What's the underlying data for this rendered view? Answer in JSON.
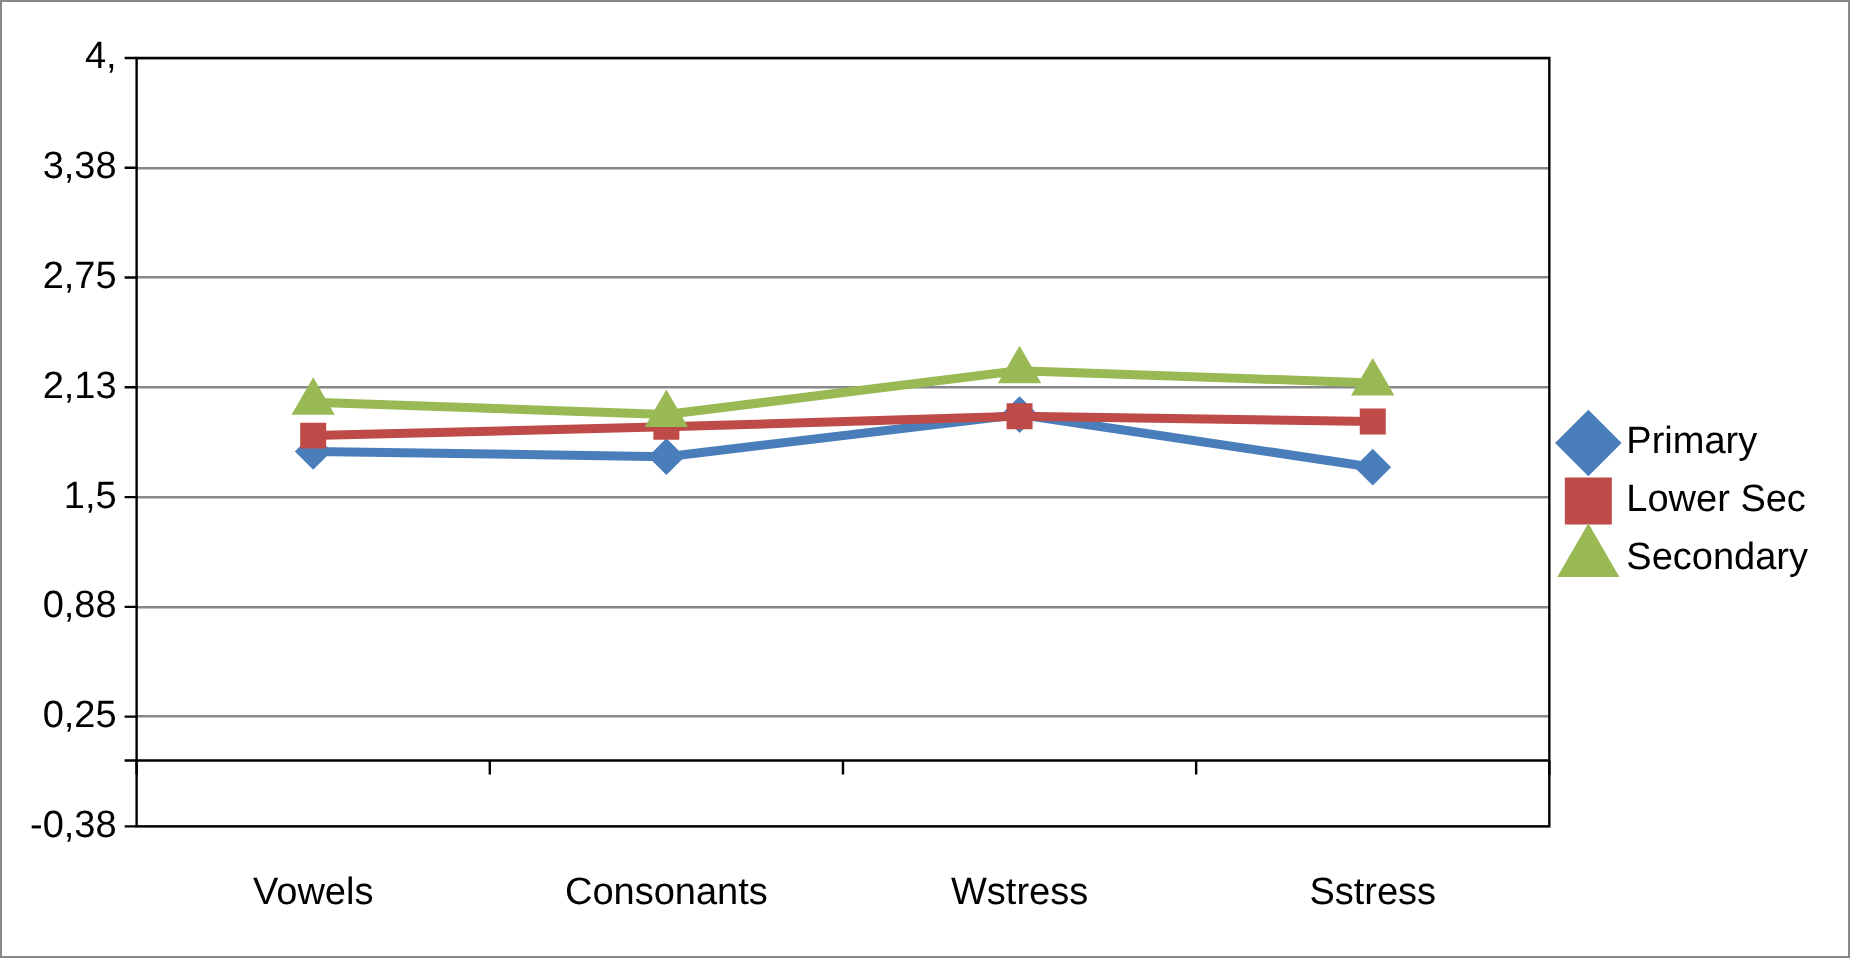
{
  "chart_data": {
    "type": "line",
    "categories": [
      "Vowels",
      "Consonants",
      "Wstress",
      "Sstress"
    ],
    "series": [
      {
        "name": "Primary",
        "color": "#4a7ebb",
        "marker": "diamond",
        "values": [
          1.76,
          1.73,
          1.97,
          1.67
        ]
      },
      {
        "name": "Lower Sec",
        "color": "#be4b48",
        "marker": "square",
        "values": [
          1.85,
          1.9,
          1.96,
          1.93
        ]
      },
      {
        "name": "Secondary",
        "color": "#98b954",
        "marker": "triangle",
        "values": [
          2.04,
          1.97,
          2.22,
          2.15
        ]
      }
    ],
    "ylim": [
      -0.375,
      4
    ],
    "yticks": [
      {
        "value": -0.375,
        "label": "-0,38"
      },
      {
        "value": 0.25,
        "label": "0,25"
      },
      {
        "value": 0.875,
        "label": "0,88"
      },
      {
        "value": 1.5,
        "label": "1,5"
      },
      {
        "value": 2.125,
        "label": "2,13"
      },
      {
        "value": 2.75,
        "label": "2,75"
      },
      {
        "value": 3.375,
        "label": "3,38"
      },
      {
        "value": 4,
        "label": "4,"
      }
    ],
    "grid": "y",
    "legend": "right",
    "line_style": "solid"
  }
}
